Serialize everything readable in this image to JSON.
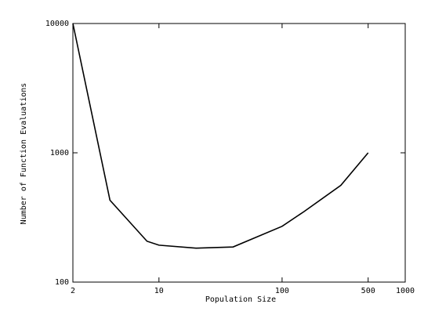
{
  "chart_data": {
    "type": "line",
    "x_label": "Population Size",
    "y_label": "Number of Function Evaluations",
    "x": [
      2,
      4,
      8,
      10,
      20,
      40,
      100,
      150,
      300,
      500
    ],
    "series": [
      {
        "color": "#000000",
        "values": [
          10000,
          430,
          207,
          193,
          183,
          187,
          270,
          350,
          560,
          1000
        ]
      }
    ],
    "xlim": [
      2,
      1000
    ],
    "ylim": [
      100,
      10000
    ],
    "xticks": [
      2,
      10,
      100,
      500,
      1000
    ],
    "yticks": [
      100,
      1000,
      10000
    ],
    "xscale": "log",
    "yscale": "log"
  }
}
